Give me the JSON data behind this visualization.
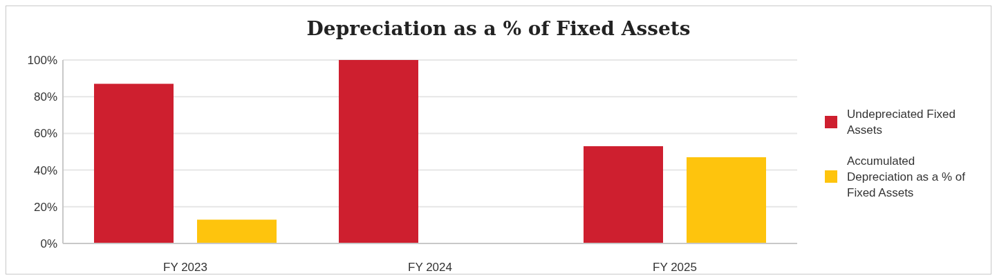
{
  "chart_data": {
    "type": "bar",
    "title": "Depreciation as a % of Fixed Assets",
    "categories": [
      "FY 2023",
      "FY 2024",
      "FY 2025"
    ],
    "series": [
      {
        "name": "Undepreciated Fixed Assets",
        "color": "#ce1f2f",
        "values": [
          87,
          100,
          53
        ]
      },
      {
        "name": "Accumulated Depreciation as a % of Fixed Assets",
        "color": "#fec40d",
        "values": [
          13,
          0,
          47
        ]
      }
    ],
    "ylim": [
      0,
      100
    ],
    "yticks": [
      {
        "value": 0,
        "label": "0%"
      },
      {
        "value": 20,
        "label": "20%"
      },
      {
        "value": 40,
        "label": "40%"
      },
      {
        "value": 60,
        "label": "60%"
      },
      {
        "value": 80,
        "label": "80%"
      },
      {
        "value": 100,
        "label": "100%"
      }
    ],
    "grid": "y",
    "legend": "right"
  }
}
